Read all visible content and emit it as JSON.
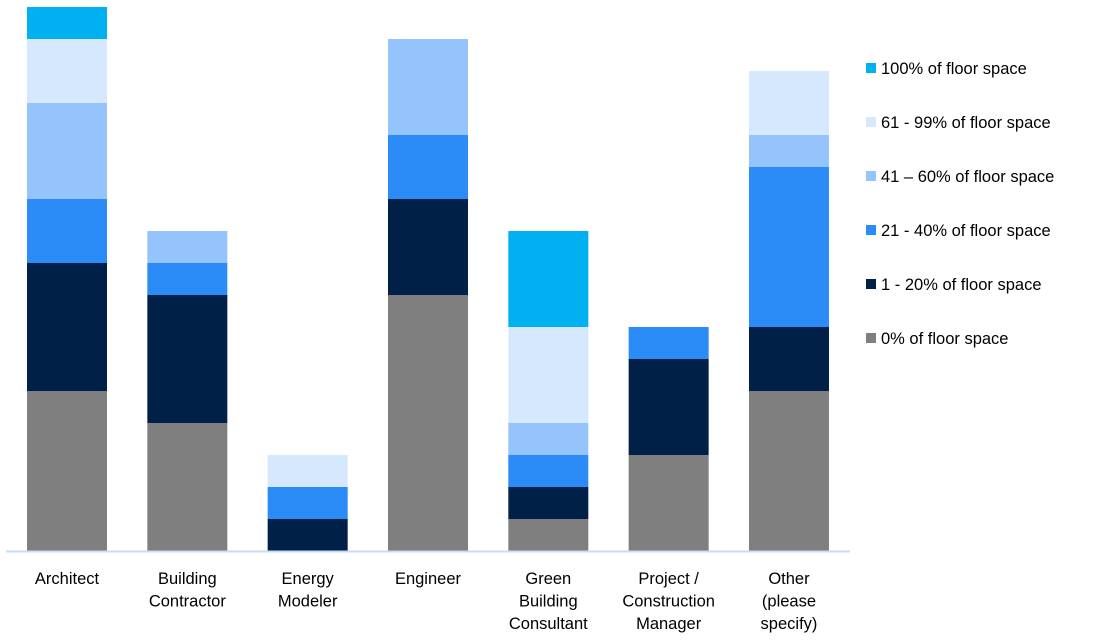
{
  "chart_data": {
    "type": "bar",
    "stacked": true,
    "categories": [
      [
        "Architect"
      ],
      [
        "Building",
        "Contractor"
      ],
      [
        "Energy",
        "Modeler"
      ],
      [
        "Engineer"
      ],
      [
        "Green",
        "Building",
        "Consultant"
      ],
      [
        "Project /",
        "Construction",
        "Manager"
      ],
      [
        "Other",
        "(please",
        "specify)"
      ]
    ],
    "series": [
      {
        "name": "0% of floor space",
        "color": "#7f7f7f",
        "values": [
          5,
          4,
          0,
          8,
          1,
          3,
          5
        ]
      },
      {
        "name": "1 - 20% of floor space",
        "color": "#002047",
        "values": [
          4,
          4,
          1,
          3,
          1,
          3,
          2
        ]
      },
      {
        "name": "21 - 40% of floor space",
        "color": "#2b8bf7",
        "values": [
          2,
          1,
          1,
          2,
          1,
          1,
          5
        ]
      },
      {
        "name": "41 – 60% of floor space",
        "color": "#95c3fb",
        "values": [
          3,
          1,
          0,
          3,
          1,
          0,
          1
        ]
      },
      {
        "name": "61 - 99% of floor space",
        "color": "#d6e8fd",
        "values": [
          2,
          0,
          1,
          0,
          3,
          0,
          2
        ]
      },
      {
        "name": "100% of floor space",
        "color": "#00b0f0",
        "values": [
          1,
          0,
          0,
          0,
          3,
          0,
          0
        ]
      }
    ],
    "ylim": [
      0,
      17
    ],
    "grid": false,
    "legend": "right",
    "axis_color": "#c5dcf6"
  }
}
